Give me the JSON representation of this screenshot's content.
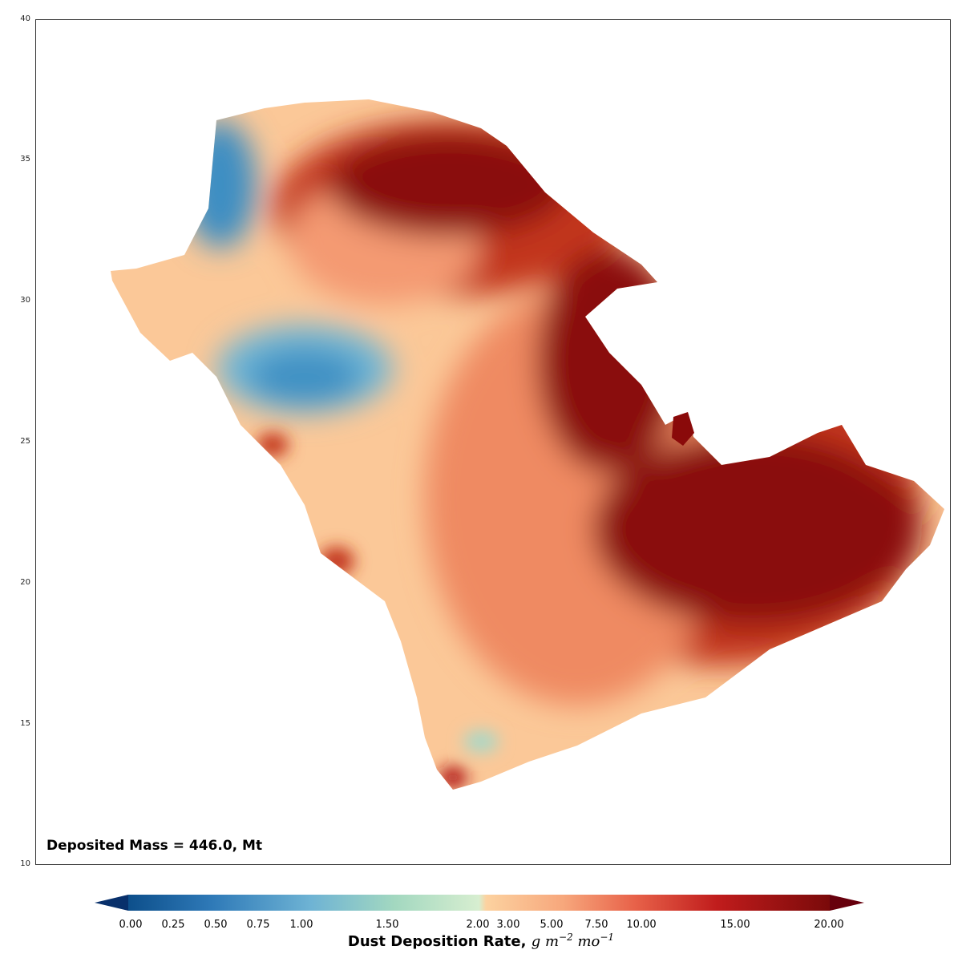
{
  "map": {
    "y_axis": {
      "ticks": [
        "40",
        "35",
        "30",
        "25",
        "20",
        "15",
        "10"
      ]
    },
    "annotation": "Deposited Mass = 446.0, Mt",
    "colormap": "RdYlBu_r",
    "region": "Arabian Peninsula"
  },
  "colorbar": {
    "ticks": [
      "0.00",
      "0.25",
      "0.50",
      "0.75",
      "1.00",
      "1.50",
      "2.00",
      "3.00",
      "5.00",
      "7.50",
      "10.00",
      "15.00",
      "20.00"
    ],
    "title_main": "Dust Deposition Rate,",
    "title_units": "g m",
    "title_exp1": "−2",
    "title_units2": "mo",
    "title_exp2": "−1",
    "low_color": "#08306b",
    "high_color": "#67000d"
  }
}
